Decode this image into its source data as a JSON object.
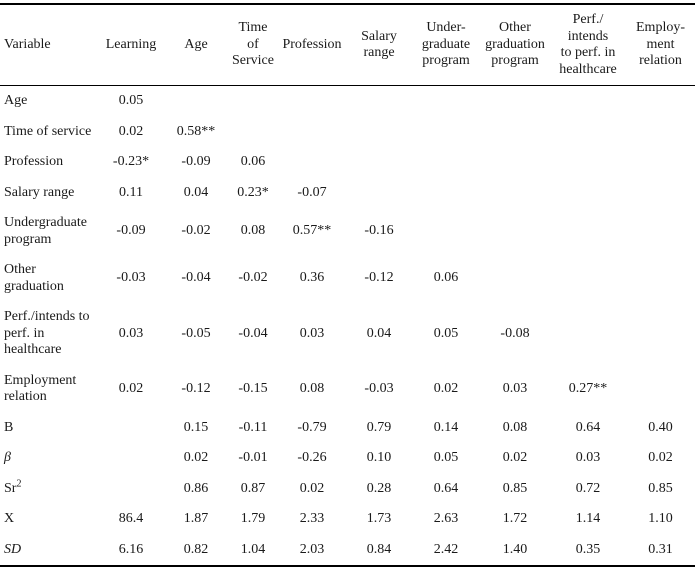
{
  "table": {
    "columns": [
      {
        "id": "variable",
        "lines": [
          "Variable"
        ]
      },
      {
        "id": "learning",
        "lines": [
          "Learning"
        ]
      },
      {
        "id": "age",
        "lines": [
          "Age"
        ]
      },
      {
        "id": "time-of-service",
        "lines": [
          "Time",
          "of",
          "Service"
        ]
      },
      {
        "id": "profession",
        "lines": [
          "Profession"
        ]
      },
      {
        "id": "salary-range",
        "lines": [
          "Salary",
          "range"
        ]
      },
      {
        "id": "undergraduate-program",
        "lines": [
          "Under-",
          "graduate",
          "program"
        ]
      },
      {
        "id": "other-graduation-program",
        "lines": [
          "Other",
          "graduation",
          "program"
        ]
      },
      {
        "id": "perf-intends-healthcare",
        "lines": [
          "Perf./",
          "intends",
          "to perf. in",
          "healthcare"
        ]
      },
      {
        "id": "employment-relation",
        "lines": [
          "Employ-",
          "ment",
          "relation"
        ]
      }
    ],
    "rows": [
      {
        "label": "Age",
        "italic": false,
        "sup": "",
        "values": [
          "0.05",
          "",
          "",
          "",
          "",
          "",
          "",
          "",
          ""
        ]
      },
      {
        "label": "Time of service",
        "italic": false,
        "sup": "",
        "values": [
          "0.02",
          "0.58**",
          "",
          "",
          "",
          "",
          "",
          "",
          ""
        ]
      },
      {
        "label": "Profession",
        "italic": false,
        "sup": "",
        "values": [
          "-0.23*",
          "-0.09",
          "0.06",
          "",
          "",
          "",
          "",
          "",
          ""
        ]
      },
      {
        "label": "Salary range",
        "italic": false,
        "sup": "",
        "values": [
          "0.11",
          "0.04",
          "0.23*",
          "-0.07",
          "",
          "",
          "",
          "",
          ""
        ]
      },
      {
        "label": "Undergraduate program",
        "italic": false,
        "sup": "",
        "values": [
          "-0.09",
          "-0.02",
          "0.08",
          "0.57**",
          "-0.16",
          "",
          "",
          "",
          ""
        ]
      },
      {
        "label": "Other graduation",
        "italic": false,
        "sup": "",
        "values": [
          "-0.03",
          "-0.04",
          "-0.02",
          "0.36",
          "-0.12",
          "0.06",
          "",
          "",
          ""
        ]
      },
      {
        "label": "Perf./intends to perf. in healthcare",
        "italic": false,
        "sup": "",
        "values": [
          "0.03",
          "-0.05",
          "-0.04",
          "0.03",
          "0.04",
          "0.05",
          "-0.08",
          "",
          ""
        ]
      },
      {
        "label": "Employment relation",
        "italic": false,
        "sup": "",
        "values": [
          "0.02",
          "-0.12",
          "-0.15",
          "0.08",
          "-0.03",
          "0.02",
          "0.03",
          "0.27**",
          ""
        ]
      },
      {
        "label": "B",
        "italic": false,
        "sup": "",
        "values": [
          "",
          "0.15",
          "-0.11",
          "-0.79",
          "0.79",
          "0.14",
          "0.08",
          "0.64",
          "0.40"
        ]
      },
      {
        "label": "β",
        "italic": true,
        "sup": "",
        "values": [
          "",
          "0.02",
          "-0.01",
          "-0.26",
          "0.10",
          "0.05",
          "0.02",
          "0.03",
          "0.02"
        ]
      },
      {
        "label": "Sr",
        "italic": false,
        "sup": "2",
        "values": [
          "",
          "0.86",
          "0.87",
          "0.02",
          "0.28",
          "0.64",
          "0.85",
          "0.72",
          "0.85"
        ]
      },
      {
        "label": "X",
        "italic": false,
        "sup": "",
        "values": [
          "86.4",
          "1.87",
          "1.79",
          "2.33",
          "1.73",
          "2.63",
          "1.72",
          "1.14",
          "1.10"
        ]
      },
      {
        "label": "SD",
        "italic": true,
        "sup": "",
        "values": [
          "6.16",
          "0.82",
          "1.04",
          "2.03",
          "0.84",
          "2.42",
          "1.40",
          "0.35",
          "0.31"
        ]
      }
    ],
    "colors": {
      "text": "#1a1a1a",
      "rule": "#000000",
      "background": "#ffffff"
    }
  }
}
